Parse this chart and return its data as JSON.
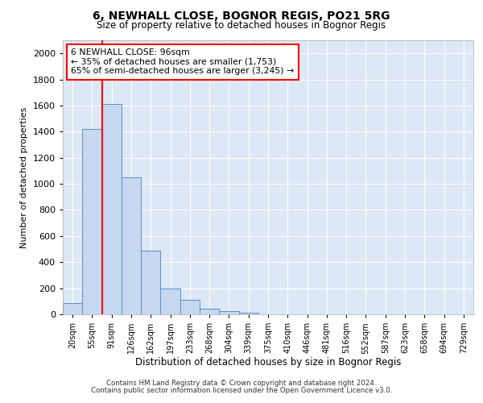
{
  "title_line1": "6, NEWHALL CLOSE, BOGNOR REGIS, PO21 5RG",
  "title_line2": "Size of property relative to detached houses in Bognor Regis",
  "xlabel": "Distribution of detached houses by size in Bognor Regis",
  "ylabel": "Number of detached properties",
  "footer_line1": "Contains HM Land Registry data © Crown copyright and database right 2024.",
  "footer_line2": "Contains public sector information licensed under the Open Government Licence v3.0.",
  "bins": [
    "20sqm",
    "55sqm",
    "91sqm",
    "126sqm",
    "162sqm",
    "197sqm",
    "233sqm",
    "268sqm",
    "304sqm",
    "339sqm",
    "375sqm",
    "410sqm",
    "446sqm",
    "481sqm",
    "516sqm",
    "552sqm",
    "587sqm",
    "623sqm",
    "658sqm",
    "694sqm",
    "729sqm"
  ],
  "bar_values": [
    85,
    1420,
    1610,
    1050,
    490,
    200,
    110,
    45,
    25,
    15,
    0,
    0,
    0,
    0,
    0,
    0,
    0,
    0,
    0,
    0,
    0
  ],
  "bar_color": "#c5d8f0",
  "bar_edge_color": "#5b8ec4",
  "ylim": [
    0,
    2100
  ],
  "yticks": [
    0,
    200,
    400,
    600,
    800,
    1000,
    1200,
    1400,
    1600,
    1800,
    2000
  ],
  "red_line_x": 1.5,
  "property_line_label": "6 NEWHALL CLOSE: 96sqm",
  "annotation_line1": "← 35% of detached houses are smaller (1,753)",
  "annotation_line2": "65% of semi-detached houses are larger (3,245) →",
  "fig_bg_color": "#ffffff",
  "plot_bg_color": "#dce8f5",
  "grid_color": "#ffffff"
}
